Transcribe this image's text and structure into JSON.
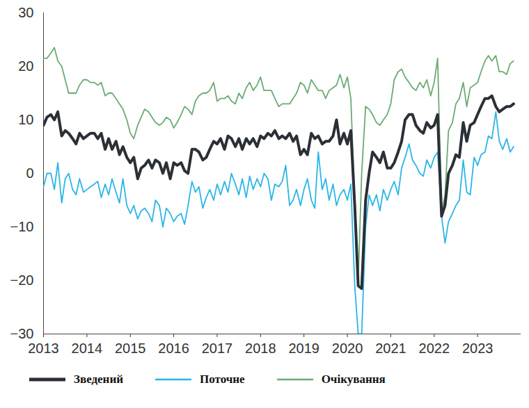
{
  "chart_data": {
    "type": "line",
    "x": [
      2013.0,
      2013.08,
      2013.17,
      2013.25,
      2013.33,
      2013.42,
      2013.5,
      2013.58,
      2013.67,
      2013.75,
      2013.83,
      2013.92,
      2014.0,
      2014.08,
      2014.17,
      2014.25,
      2014.33,
      2014.42,
      2014.5,
      2014.58,
      2014.67,
      2014.75,
      2014.83,
      2014.92,
      2015.0,
      2015.08,
      2015.17,
      2015.25,
      2015.33,
      2015.42,
      2015.5,
      2015.58,
      2015.67,
      2015.75,
      2015.83,
      2015.92,
      2016.0,
      2016.08,
      2016.17,
      2016.25,
      2016.33,
      2016.42,
      2016.5,
      2016.58,
      2016.67,
      2016.75,
      2016.83,
      2016.92,
      2017.0,
      2017.08,
      2017.17,
      2017.25,
      2017.33,
      2017.42,
      2017.5,
      2017.58,
      2017.67,
      2017.75,
      2017.83,
      2017.92,
      2018.0,
      2018.08,
      2018.17,
      2018.25,
      2018.33,
      2018.42,
      2018.5,
      2018.58,
      2018.67,
      2018.75,
      2018.83,
      2018.92,
      2019.0,
      2019.08,
      2019.17,
      2019.25,
      2019.33,
      2019.42,
      2019.5,
      2019.58,
      2019.67,
      2019.75,
      2019.83,
      2019.92,
      2020.0,
      2020.08,
      2020.17,
      2020.25,
      2020.33,
      2020.42,
      2020.5,
      2020.58,
      2020.67,
      2020.75,
      2020.83,
      2020.92,
      2021.0,
      2021.08,
      2021.17,
      2021.25,
      2021.33,
      2021.42,
      2021.5,
      2021.58,
      2021.67,
      2021.75,
      2021.83,
      2021.92,
      2022.0,
      2022.08,
      2022.17,
      2022.25,
      2022.33,
      2022.42,
      2022.5,
      2022.58,
      2022.67,
      2022.75,
      2022.83,
      2022.92,
      2023.0,
      2023.08,
      2023.17,
      2023.25,
      2023.33,
      2023.42,
      2023.5,
      2023.58,
      2023.67,
      2023.75,
      2023.83
    ],
    "series": [
      {
        "name": "Зведений",
        "color": "#2b2f36",
        "values": [
          9,
          10.5,
          11,
          10,
          11.5,
          7,
          8,
          7.5,
          6.5,
          5.5,
          7.5,
          6.5,
          7,
          7.5,
          7.5,
          6.5,
          7.5,
          4.5,
          6.5,
          4.5,
          6,
          3.5,
          5,
          3,
          2,
          3,
          -1,
          1,
          1.5,
          2.5,
          1,
          2.5,
          2,
          0,
          2,
          -1,
          2,
          1.5,
          2,
          0.5,
          0,
          4.5,
          4.5,
          4,
          2.5,
          3,
          4.5,
          6,
          5.5,
          6.5,
          4.5,
          7,
          6.5,
          5,
          6.5,
          4.5,
          6.5,
          5.5,
          6.5,
          5,
          7,
          6.5,
          7.5,
          7,
          8,
          6.5,
          7,
          6.5,
          7.5,
          6,
          7,
          3.5,
          4.5,
          3.5,
          7.5,
          6.5,
          7,
          5.5,
          6,
          6,
          7,
          10,
          5.5,
          7.5,
          5.5,
          8,
          -6,
          -21,
          -21.5,
          -5,
          0,
          4,
          3,
          2,
          4,
          1,
          1,
          2,
          4,
          6,
          10,
          11,
          11,
          9,
          8,
          7.5,
          9.5,
          8.5,
          9,
          11,
          -8,
          -6,
          0,
          1.5,
          3.5,
          3,
          9.5,
          6,
          9,
          9.5,
          11,
          12.5,
          14,
          14,
          14.5,
          12.5,
          11.5,
          12,
          12.5,
          12.5,
          13
        ]
      },
      {
        "name": "Поточне",
        "color": "#2bb5e6",
        "values": [
          -2.5,
          0,
          0,
          -3,
          2,
          -5.5,
          -1,
          0,
          -3,
          -4,
          -1,
          -3.5,
          -3,
          -2.5,
          -2,
          -1.5,
          -4.5,
          -2,
          -4,
          -1,
          -3.5,
          -5.5,
          -1,
          -6,
          -7.5,
          -6,
          -8.5,
          -7,
          -6.5,
          -7.5,
          -9,
          -5,
          -6,
          -10,
          -6.5,
          -7.5,
          -9,
          -8,
          -7.5,
          -9.5,
          -6,
          -1.5,
          -3.5,
          -2.5,
          -6.5,
          -4.5,
          -3,
          -5,
          -2,
          -4,
          -1.5,
          -3.5,
          0,
          -2,
          -4,
          -1,
          -4.5,
          -0.5,
          -3,
          -1,
          -2.5,
          0,
          -1,
          -5,
          -2,
          -2.5,
          -1.5,
          1.5,
          -6,
          -5,
          -3,
          -6,
          -3,
          -1,
          -5,
          -6.5,
          4,
          -3,
          -1,
          -5,
          -2,
          -6,
          -4,
          -3,
          -5,
          -2,
          -21,
          -30,
          -30,
          -10,
          -4,
          -6,
          -4,
          -7,
          -3,
          -5,
          -3,
          -1.5,
          -4,
          1,
          3,
          5.5,
          2.5,
          1.5,
          0,
          -0.5,
          2.5,
          1,
          3,
          4,
          -8,
          -13,
          -9,
          -7.5,
          -6,
          -5,
          2.5,
          -3.5,
          -4,
          3,
          1.5,
          3.5,
          4,
          7,
          6.5,
          11.5,
          6,
          4.5,
          6.5,
          4,
          5
        ]
      },
      {
        "name": "Очікування",
        "color": "#6aab73",
        "values": [
          21.5,
          21.5,
          22.5,
          23.5,
          21,
          20,
          17.5,
          15,
          15,
          15,
          16.5,
          17.5,
          17.5,
          17,
          17,
          16.5,
          17,
          14.5,
          15,
          15,
          14,
          13,
          12,
          10,
          7.5,
          6.5,
          9,
          10.5,
          12,
          11.5,
          10.5,
          9.5,
          9,
          9.5,
          10.5,
          10,
          8.5,
          9.5,
          11,
          12.5,
          12,
          11,
          13.5,
          14.5,
          15,
          15,
          15.5,
          17,
          13.5,
          14,
          14,
          14.5,
          13.5,
          13,
          15,
          14,
          16,
          17,
          15.5,
          16.5,
          18,
          15.5,
          15.5,
          15.5,
          14,
          12.5,
          13,
          13,
          13,
          14,
          15,
          17,
          16.5,
          15,
          17.5,
          16.5,
          15.5,
          15.5,
          14,
          15.5,
          16,
          16.5,
          18.5,
          16,
          18,
          14,
          -5,
          -20,
          0,
          12.5,
          12,
          11,
          9.5,
          9,
          10,
          11,
          13,
          17.5,
          19,
          19.5,
          18,
          17,
          16,
          15.5,
          17,
          16,
          17.5,
          14.5,
          17,
          21.5,
          -7.5,
          -4,
          8,
          9.5,
          13,
          14,
          17,
          12.5,
          16,
          16.5,
          17,
          19,
          21,
          22,
          21,
          22,
          19,
          19,
          18.5,
          20.5,
          21
        ]
      }
    ],
    "xlim": [
      2013,
      2024
    ],
    "xticks": [
      2013,
      2014,
      2015,
      2016,
      2017,
      2018,
      2019,
      2020,
      2021,
      2022,
      2023
    ],
    "ylim": [
      -30,
      30
    ],
    "yticks": [
      -30,
      -20,
      -10,
      0,
      10,
      20,
      30
    ],
    "grid": false,
    "legend": "bottom"
  }
}
